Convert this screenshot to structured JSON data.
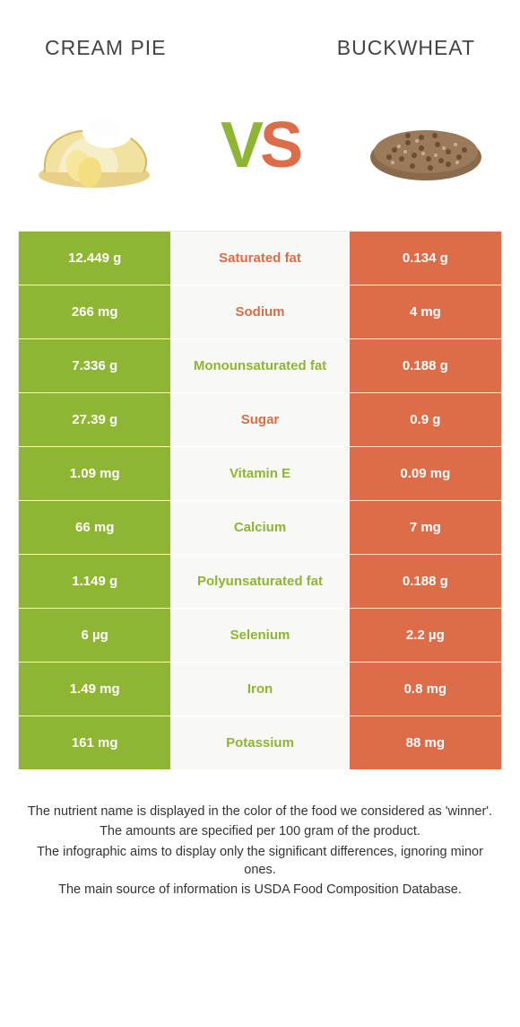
{
  "header": {
    "left_title": "CREAM PIE",
    "right_title": "BUCKWHEAT"
  },
  "vs": {
    "v": "V",
    "s": "S"
  },
  "colors": {
    "green": "#8eb533",
    "orange": "#dd6c49",
    "mid_bg": "#f8f8f4",
    "border": "#e9e9e9",
    "text": "#333333"
  },
  "table": {
    "type": "comparison-table",
    "columns": [
      "left_value",
      "nutrient",
      "right_value"
    ],
    "rows": [
      {
        "left": "12.449 g",
        "mid": "Saturated fat",
        "right": "0.134 g",
        "winner": "orange"
      },
      {
        "left": "266 mg",
        "mid": "Sodium",
        "right": "4 mg",
        "winner": "orange"
      },
      {
        "left": "7.336 g",
        "mid": "Monounsaturated fat",
        "right": "0.188 g",
        "winner": "green"
      },
      {
        "left": "27.39 g",
        "mid": "Sugar",
        "right": "0.9 g",
        "winner": "orange"
      },
      {
        "left": "1.09 mg",
        "mid": "Vitamin E",
        "right": "0.09 mg",
        "winner": "green"
      },
      {
        "left": "66 mg",
        "mid": "Calcium",
        "right": "7 mg",
        "winner": "green"
      },
      {
        "left": "1.149 g",
        "mid": "Polyunsaturated fat",
        "right": "0.188 g",
        "winner": "green"
      },
      {
        "left": "6 µg",
        "mid": "Selenium",
        "right": "2.2 µg",
        "winner": "green"
      },
      {
        "left": "1.49 mg",
        "mid": "Iron",
        "right": "0.8 mg",
        "winner": "green"
      },
      {
        "left": "161 mg",
        "mid": "Potassium",
        "right": "88 mg",
        "winner": "green"
      }
    ]
  },
  "footer": {
    "line1": "The nutrient name is displayed in the color of the food we considered as 'winner'.",
    "line2": "The amounts are specified per 100 gram of the product.",
    "line3": "The infographic aims to display only the significant differences, ignoring minor ones.",
    "line4": "The main source of information is USDA Food Composition Database."
  }
}
